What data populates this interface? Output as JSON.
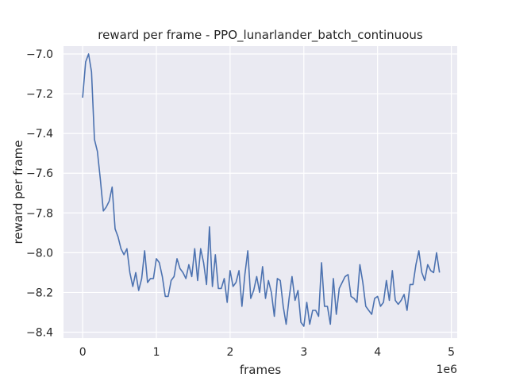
{
  "chart_data": {
    "type": "line",
    "title": "reward per frame - PPO_lunarlander_batch_continuous",
    "xlabel": "frames",
    "ylabel": "reward per frame",
    "x_offset_label": "1e6",
    "xlim": [
      -0.26,
      5.08
    ],
    "ylim": [
      -8.43,
      -6.96
    ],
    "x_ticks": [
      0,
      1,
      2,
      3,
      4,
      5
    ],
    "x_tick_labels": [
      "0",
      "1",
      "2",
      "3",
      "4",
      "5"
    ],
    "y_ticks": [
      -7.0,
      -7.2,
      -7.4,
      -7.6,
      -7.8,
      -8.0,
      -8.2,
      -8.4
    ],
    "y_tick_labels": [
      "−7.0",
      "−7.2",
      "−7.4",
      "−7.6",
      "−7.8",
      "−8.0",
      "−8.2",
      "−8.4"
    ],
    "grid": true,
    "colors": {
      "background": "#eaeaf2",
      "grid": "#ffffff",
      "line": "#4c72b0"
    },
    "series": [
      {
        "x": [
          0.0,
          0.04,
          0.08,
          0.12,
          0.16,
          0.2,
          0.24,
          0.28,
          0.32,
          0.36,
          0.4,
          0.44,
          0.48,
          0.52,
          0.56,
          0.6,
          0.64,
          0.68,
          0.72,
          0.76,
          0.8,
          0.84,
          0.88,
          0.92,
          0.96,
          1.0,
          1.04,
          1.08,
          1.12,
          1.16,
          1.2,
          1.24,
          1.28,
          1.32,
          1.36,
          1.4,
          1.44,
          1.48,
          1.52,
          1.56,
          1.6,
          1.64,
          1.68,
          1.72,
          1.76,
          1.8,
          1.84,
          1.88,
          1.92,
          1.96,
          2.0,
          2.04,
          2.08,
          2.12,
          2.16,
          2.2,
          2.24,
          2.28,
          2.32,
          2.36,
          2.4,
          2.44,
          2.48,
          2.52,
          2.56,
          2.6,
          2.64,
          2.68,
          2.72,
          2.76,
          2.8,
          2.84,
          2.88,
          2.92,
          2.96,
          3.0,
          3.04,
          3.08,
          3.12,
          3.16,
          3.2,
          3.24,
          3.28,
          3.32,
          3.36,
          3.4,
          3.44,
          3.48,
          3.52,
          3.56,
          3.6,
          3.64,
          3.68,
          3.72,
          3.76,
          3.8,
          3.84,
          3.88,
          3.92,
          3.96,
          4.0,
          4.04,
          4.08,
          4.12,
          4.16,
          4.2,
          4.24,
          4.28,
          4.32,
          4.36,
          4.4,
          4.44,
          4.48,
          4.52,
          4.56,
          4.6,
          4.64,
          4.68,
          4.72,
          4.76,
          4.8,
          4.84
        ],
        "y": [
          -7.22,
          -7.04,
          -7.0,
          -7.09,
          -7.43,
          -7.49,
          -7.63,
          -7.79,
          -7.77,
          -7.74,
          -7.67,
          -7.88,
          -7.92,
          -7.98,
          -8.01,
          -7.98,
          -8.1,
          -8.17,
          -8.1,
          -8.19,
          -8.13,
          -7.99,
          -8.15,
          -8.13,
          -8.13,
          -8.03,
          -8.05,
          -8.12,
          -8.22,
          -8.22,
          -8.14,
          -8.12,
          -8.03,
          -8.08,
          -8.1,
          -8.13,
          -8.06,
          -8.12,
          -7.98,
          -8.14,
          -7.98,
          -8.05,
          -8.16,
          -7.87,
          -8.17,
          -8.01,
          -8.18,
          -8.18,
          -8.13,
          -8.25,
          -8.09,
          -8.17,
          -8.15,
          -8.09,
          -8.27,
          -8.11,
          -7.99,
          -8.23,
          -8.19,
          -8.12,
          -8.2,
          -8.07,
          -8.23,
          -8.14,
          -8.2,
          -8.32,
          -8.13,
          -8.14,
          -8.27,
          -8.36,
          -8.23,
          -8.12,
          -8.24,
          -8.19,
          -8.35,
          -8.37,
          -8.25,
          -8.36,
          -8.29,
          -8.29,
          -8.32,
          -8.05,
          -8.27,
          -8.27,
          -8.36,
          -8.13,
          -8.31,
          -8.18,
          -8.15,
          -8.12,
          -8.11,
          -8.22,
          -8.23,
          -8.25,
          -8.06,
          -8.15,
          -8.27,
          -8.29,
          -8.31,
          -8.23,
          -8.22,
          -8.27,
          -8.25,
          -8.14,
          -8.24,
          -8.09,
          -8.24,
          -8.26,
          -8.24,
          -8.21,
          -8.29,
          -8.16,
          -8.16,
          -8.06,
          -7.99,
          -8.1,
          -8.14,
          -8.06,
          -8.09,
          -8.1,
          -8.0,
          -8.1
        ]
      }
    ]
  }
}
